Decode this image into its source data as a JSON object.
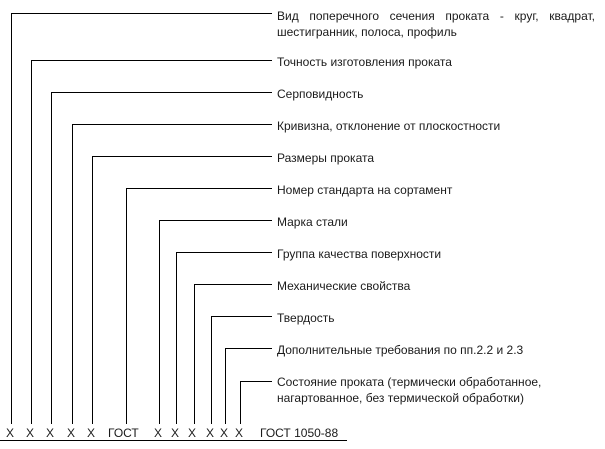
{
  "labels": [
    "Вид поперечного сечения проката - круг, квадрат, шестигранник, полоса, профиль",
    "Точность изготовления проката",
    "Серповидность",
    "Кривизна, отклонение от плоскостности",
    "Размеры проката",
    "Номер стандарта на сортамент",
    "Марка стали",
    "Группа качества поверхности",
    "Механические свойства",
    "Твердость",
    "Дополнительные требования по пп.2.2 и 2.3",
    "Состояние проката (термически обработанное, нагартованное, без термической обработки)"
  ],
  "bottom": [
    "Х",
    "Х",
    "Х",
    "Х",
    "Х",
    "ГОСТ",
    "Х",
    "Х",
    "Х",
    "Х",
    "Х",
    "Х",
    "ГОСТ 1050-88"
  ],
  "line_color": "#000000"
}
